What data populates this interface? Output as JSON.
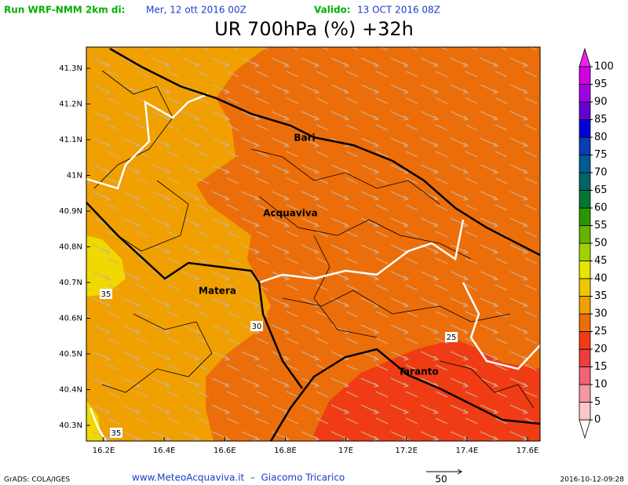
{
  "header": {
    "run_label": "Run WRF-NMM 2km di:",
    "run_date": "Mer, 12 ott 2016 00Z",
    "valid_label": "Valido:",
    "valid_date": "13 OCT 2016 08Z",
    "title": "UR 700hPa (%) +32h"
  },
  "map": {
    "lat_ticks": [
      {
        "value": 41.3,
        "label": "41.3N"
      },
      {
        "value": 41.2,
        "label": "41.2N"
      },
      {
        "value": 41.1,
        "label": "41.1N"
      },
      {
        "value": 41,
        "label": "41N"
      },
      {
        "value": 40.9,
        "label": "40.9N"
      },
      {
        "value": 40.8,
        "label": "40.8N"
      },
      {
        "value": 40.7,
        "label": "40.7N"
      },
      {
        "value": 40.6,
        "label": "40.6N"
      },
      {
        "value": 40.5,
        "label": "40.5N"
      },
      {
        "value": 40.4,
        "label": "40.4N"
      },
      {
        "value": 40.3,
        "label": "40.3N"
      }
    ],
    "lon_ticks": [
      {
        "value": 16.2,
        "label": "16.2E"
      },
      {
        "value": 16.4,
        "label": "16.4E"
      },
      {
        "value": 16.6,
        "label": "16.6E"
      },
      {
        "value": 16.8,
        "label": "16.8E"
      },
      {
        "value": 17,
        "label": "17E"
      },
      {
        "value": 17.2,
        "label": "17.2E"
      },
      {
        "value": 17.4,
        "label": "17.4E"
      },
      {
        "value": 17.6,
        "label": "17.6E"
      }
    ],
    "places": [
      "Bari",
      "Acquaviva",
      "Matera",
      "Taranto"
    ],
    "contour_labels": [
      35,
      30,
      25,
      35
    ]
  },
  "colorbar": {
    "levels": [
      0,
      5,
      10,
      15,
      20,
      25,
      30,
      35,
      40,
      45,
      50,
      55,
      60,
      65,
      70,
      75,
      80,
      85,
      90,
      95,
      100
    ],
    "colors": [
      "#fac8c8",
      "#f596a0",
      "#f06478",
      "#f03c3c",
      "#f03c14",
      "#ec6e0a",
      "#f0a000",
      "#f0c800",
      "#e6e600",
      "#a0d200",
      "#64b400",
      "#289600",
      "#007832",
      "#006464",
      "#005a96",
      "#0a3cb4",
      "#0000dc",
      "#6400d2",
      "#a000e6",
      "#d000e0"
    ]
  },
  "footer": {
    "credit": "GrADS: COLA/IGES",
    "site": "www.MeteoAcquaviva.it  –  Giacomo Tricarico",
    "vector_scale": 50,
    "timestamp": "2016-10-12-09:28"
  }
}
